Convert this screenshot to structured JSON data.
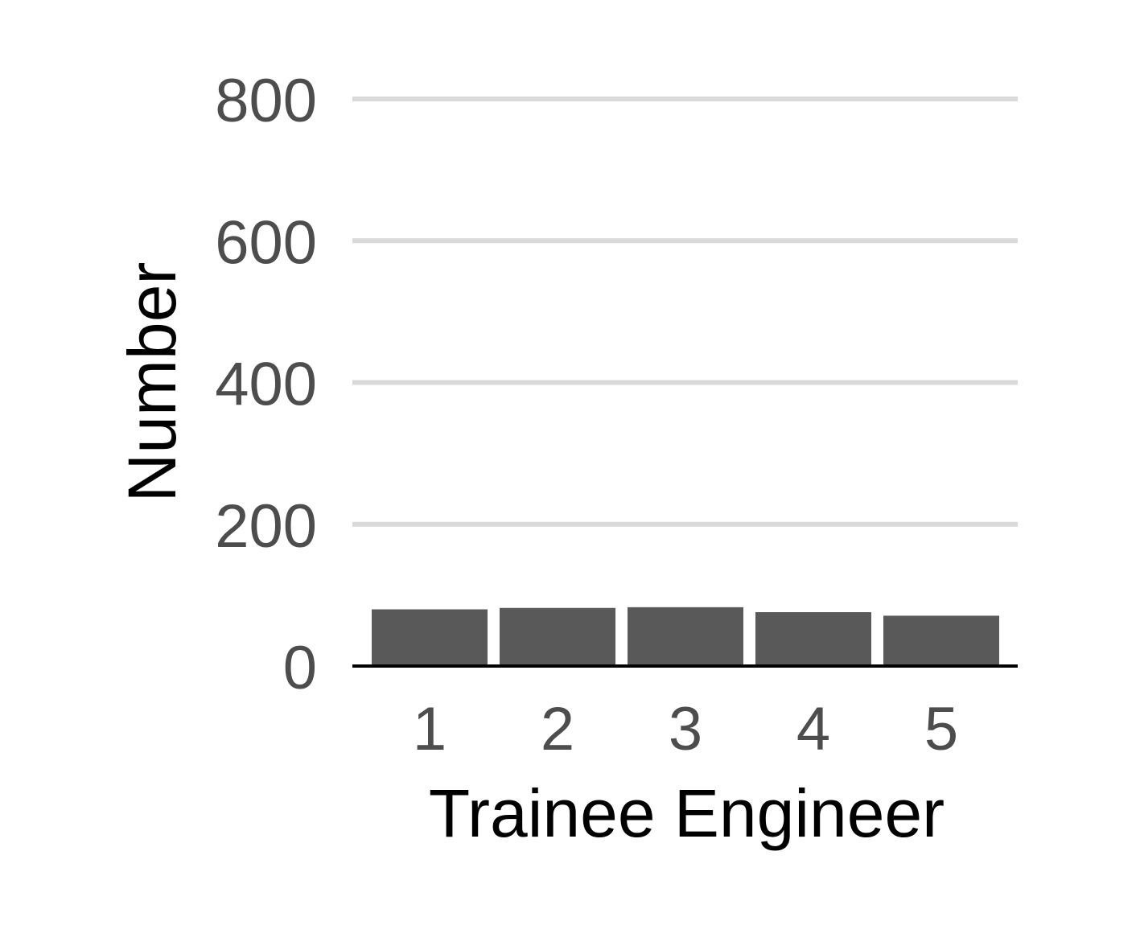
{
  "chart_data": {
    "type": "bar",
    "title": "",
    "xlabel": "Trainee Engineer",
    "ylabel": "Number",
    "categories": [
      "1",
      "2",
      "3",
      "4",
      "5"
    ],
    "values": [
      80,
      82,
      83,
      76,
      71
    ],
    "ylim": [
      0,
      800
    ],
    "yticks": [
      0,
      200,
      400,
      600,
      800
    ],
    "ytick_labels": [
      "0",
      "200",
      "400",
      "600",
      "800"
    ],
    "grid": "horizontal major",
    "legend": "none",
    "colors": {
      "bar": "#595959",
      "grid": "#d9d9d9",
      "baseline": "#000000",
      "tick_text": "#4d4d4d",
      "title_text": "#000000"
    }
  }
}
